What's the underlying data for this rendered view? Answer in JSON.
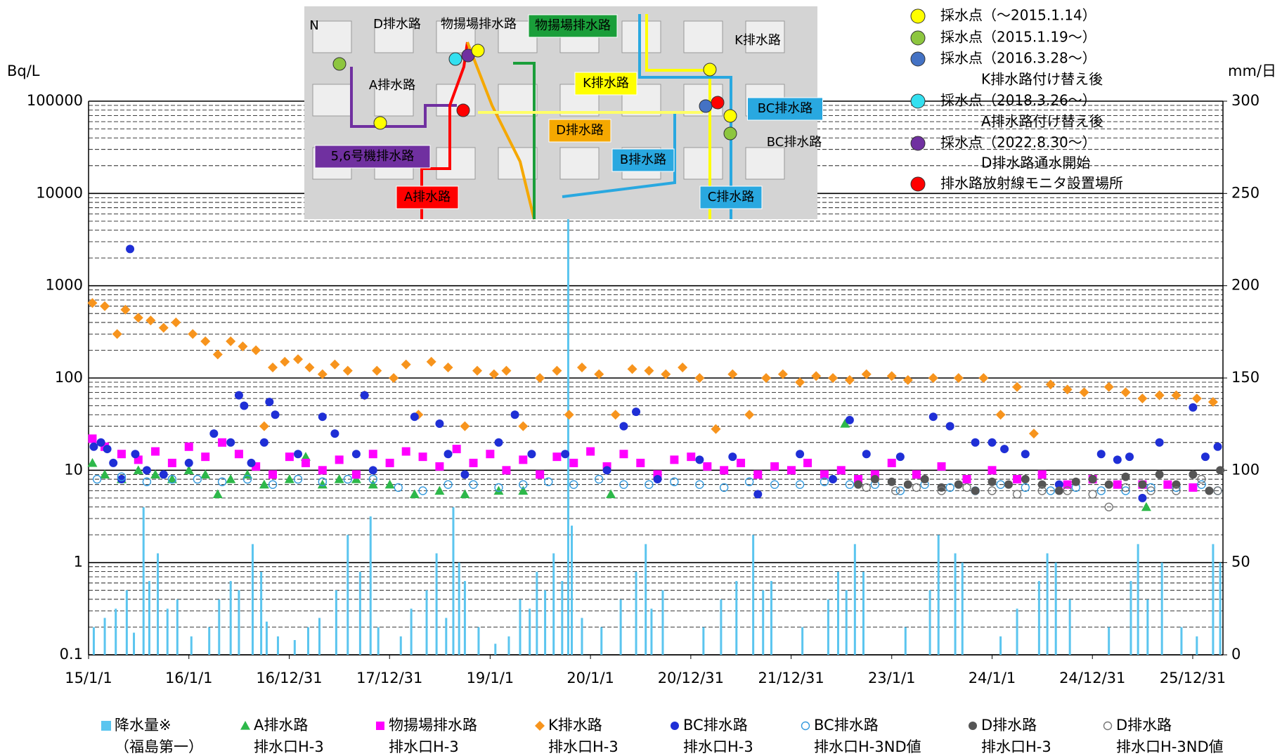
{
  "chart_data": {
    "type": "scatter",
    "y_label": "Bq/L",
    "y2_label": "mm/日",
    "xlim": [
      "15/1/1",
      "26/4/20"
    ],
    "xticks": [
      "15/1/1",
      "16/1/1",
      "16/12/31",
      "17/12/31",
      "19/1/1",
      "20/1/1",
      "20/12/31",
      "21/12/31",
      "23/1/1",
      "24/1/1",
      "24/12/31",
      "25/12/31"
    ],
    "ylim": [
      0.1,
      100000
    ],
    "yticks": [
      0.1,
      1,
      10,
      100,
      1000,
      10000,
      100000
    ],
    "y_scale": "log",
    "y2lim": [
      0,
      300
    ],
    "y2ticks": [
      0,
      50,
      100,
      150,
      200,
      250,
      300
    ],
    "grid": true,
    "series": [
      {
        "name": [
          "降水量※",
          "（福島第一）"
        ],
        "color": "#5bc5ef",
        "marker": "bar",
        "axis": "y2",
        "x": [
          "15/1/20",
          "15/3/1",
          "15/4/10",
          "15/5/20",
          "15/6/15",
          "15/7/20",
          "15/8/10",
          "15/9/10",
          "15/10/15",
          "15/11/20",
          "16/1/10",
          "16/3/15",
          "16/4/20",
          "16/6/1",
          "16/7/1",
          "16/8/20",
          "16/9/20",
          "16/10/10",
          "16/11/20",
          "17/1/20",
          "17/3/10",
          "17/4/20",
          "17/6/20",
          "17/8/1",
          "17/9/15",
          "17/10/23",
          "17/11/20",
          "18/2/10",
          "18/3/20",
          "18/5/15",
          "18/6/20",
          "18/7/25",
          "18/8/20",
          "18/9/10",
          "18/10/1",
          "18/11/20",
          "19/1/20",
          "19/3/10",
          "19/4/20",
          "19/5/25",
          "19/6/20",
          "19/7/20",
          "19/8/20",
          "19/9/20",
          "19/10/12",
          "19/10/25",
          "19/12/1",
          "20/2/10",
          "20/4/20",
          "20/6/15",
          "20/7/20",
          "20/8/10",
          "20/9/20",
          "21/2/15",
          "21/4/20",
          "21/6/15",
          "21/8/15",
          "21/9/20",
          "21/10/20",
          "22/2/10",
          "22/5/15",
          "22/6/20",
          "22/7/20",
          "22/8/20",
          "22/9/20",
          "23/2/20",
          "23/5/20",
          "23/6/20",
          "23/8/20",
          "23/9/15",
          "24/2/1",
          "24/4/1",
          "24/6/20",
          "24/7/20",
          "24/8/20",
          "24/10/10",
          "25/3/1",
          "25/5/20",
          "25/6/15",
          "25/7/20",
          "25/9/10",
          "25/11/20",
          "26/1/15",
          "26/3/15",
          "26/4/10"
        ],
        "values": [
          15,
          20,
          25,
          35,
          12,
          80,
          40,
          55,
          25,
          30,
          10,
          15,
          30,
          40,
          35,
          60,
          45,
          18,
          10,
          8,
          15,
          20,
          35,
          65,
          45,
          75,
          15,
          10,
          25,
          35,
          55,
          20,
          80,
          50,
          40,
          15,
          6,
          10,
          30,
          25,
          45,
          35,
          55,
          40,
          290,
          70,
          20,
          15,
          30,
          45,
          60,
          25,
          35,
          15,
          30,
          40,
          65,
          35,
          40,
          15,
          30,
          45,
          35,
          60,
          45,
          15,
          35,
          65,
          55,
          50,
          10,
          25,
          40,
          55,
          50,
          30,
          15,
          40,
          60,
          30,
          50,
          15,
          10,
          60,
          50
        ]
      },
      {
        "name": [
          "A排水路",
          "排水口H-3"
        ],
        "color": "#2db84a",
        "marker": "triangle",
        "x": [
          "15/1/15",
          "15/3/1",
          "15/5/1",
          "15/7/1",
          "15/9/1",
          "15/11/1",
          "16/1/1",
          "16/3/1",
          "16/4/15",
          "16/6/1",
          "16/8/1",
          "16/10/1",
          "17/1/1",
          "17/3/1",
          "17/5/1",
          "17/7/1",
          "17/9/1",
          "17/11/1",
          "18/1/1",
          "18/4/1",
          "18/7/1",
          "18/10/1",
          "19/2/1",
          "19/5/1",
          "20/3/15",
          "22/7/15",
          "25/7/15"
        ],
        "values": [
          12,
          9,
          8,
          10,
          9,
          8,
          10,
          9,
          5.5,
          8,
          9,
          7,
          8,
          14,
          7,
          8,
          8,
          7,
          7,
          5.5,
          6,
          5.5,
          6,
          6,
          5.5,
          32,
          4
        ]
      },
      {
        "name": [
          "物揚場排水路",
          "排水口H-3"
        ],
        "color": "#ff00ff",
        "marker": "square",
        "x": [
          "15/1/15",
          "15/3/1",
          "15/5/1",
          "15/7/1",
          "15/9/1",
          "15/11/1",
          "16/1/1",
          "16/3/1",
          "16/5/1",
          "16/7/1",
          "16/9/1",
          "16/11/1",
          "17/1/1",
          "17/3/1",
          "17/5/1",
          "17/7/1",
          "17/9/1",
          "17/11/1",
          "18/1/1",
          "18/3/1",
          "18/5/1",
          "18/7/1",
          "18/9/1",
          "18/11/1",
          "19/1/1",
          "19/3/1",
          "19/5/1",
          "19/7/1",
          "19/9/1",
          "19/11/1",
          "20/1/1",
          "20/3/1",
          "20/5/1",
          "20/7/1",
          "20/9/1",
          "20/11/1",
          "21/1/1",
          "21/3/1",
          "21/5/1",
          "21/7/1",
          "21/9/1",
          "21/11/1",
          "22/1/1",
          "22/3/1",
          "22/5/1",
          "22/7/1",
          "22/9/1",
          "22/11/1",
          "23/1/1",
          "23/4/1",
          "23/7/1",
          "23/10/1",
          "24/1/1",
          "24/4/1",
          "24/7/1",
          "24/10/1",
          "25/1/1",
          "25/4/1",
          "25/7/1",
          "25/10/1",
          "26/1/1"
        ],
        "values": [
          22,
          18,
          15,
          13,
          16,
          12,
          18,
          14,
          20,
          15,
          11,
          9,
          14,
          12,
          10,
          13,
          9,
          15,
          12,
          16,
          14,
          11,
          17,
          12,
          15,
          10,
          13,
          9,
          14,
          12,
          16,
          11,
          15,
          12,
          9,
          13,
          14,
          11,
          10,
          12,
          9,
          11,
          10,
          12,
          9,
          10,
          8,
          9,
          12,
          9,
          11,
          8,
          10,
          8,
          9,
          7,
          8,
          7,
          7,
          7,
          6.5
        ]
      },
      {
        "name": [
          "K排水路",
          "排水口H-3"
        ],
        "color": "#f7941d",
        "marker": "diamond",
        "x": [
          "15/1/15",
          "15/3/1",
          "15/4/15",
          "15/5/15",
          "15/7/1",
          "15/8/15",
          "15/10/1",
          "15/11/15",
          "16/1/15",
          "16/3/1",
          "16/4/15",
          "16/6/1",
          "16/7/15",
          "16/9/1",
          "16/10/1",
          "16/11/1",
          "16/12/15",
          "17/2/1",
          "17/3/15",
          "17/5/1",
          "17/6/15",
          "17/8/1",
          "17/10/1",
          "17/11/15",
          "18/1/15",
          "18/3/1",
          "18/4/15",
          "18/6/1",
          "18/8/1",
          "18/10/1",
          "18/11/15",
          "19/1/15",
          "19/3/1",
          "19/5/1",
          "19/7/1",
          "19/9/1",
          "19/10/15",
          "19/12/1",
          "20/2/1",
          "20/4/1",
          "20/6/1",
          "20/8/1",
          "20/10/1",
          "20/12/1",
          "21/2/1",
          "21/4/1",
          "21/6/1",
          "21/8/1",
          "21/10/1",
          "21/12/1",
          "22/2/1",
          "22/4/1",
          "22/6/1",
          "22/8/1",
          "22/10/1",
          "23/1/1",
          "23/3/1",
          "23/6/1",
          "23/9/1",
          "23/12/1",
          "24/2/1",
          "24/4/1",
          "24/6/1",
          "24/8/1",
          "24/10/1",
          "24/12/1",
          "25/3/1",
          "25/5/1",
          "25/7/1",
          "25/9/1",
          "25/11/1",
          "26/1/15",
          "26/3/15"
        ],
        "values": [
          650,
          600,
          300,
          550,
          450,
          420,
          350,
          400,
          300,
          250,
          180,
          250,
          220,
          200,
          30,
          130,
          150,
          160,
          130,
          110,
          140,
          120,
          65,
          120,
          100,
          140,
          40,
          150,
          130,
          30,
          120,
          110,
          120,
          30,
          100,
          120,
          40,
          130,
          110,
          40,
          125,
          120,
          110,
          130,
          100,
          28,
          110,
          40,
          100,
          110,
          90,
          105,
          100,
          95,
          110,
          105,
          95,
          100,
          100,
          100,
          40,
          80,
          25,
          85,
          75,
          70,
          80,
          70,
          60,
          65,
          65,
          60,
          55
        ]
      },
      {
        "name": [
          "BC排水路",
          "排水口H-3"
        ],
        "color": "#1f2fd6",
        "marker": "circle",
        "x": [
          "15/1/20",
          "15/2/15",
          "15/3/10",
          "15/4/1",
          "15/5/1",
          "15/6/1",
          "15/6/20",
          "15/8/1",
          "15/10/1",
          "16/1/1",
          "16/4/1",
          "16/6/1",
          "16/7/1",
          "16/7/20",
          "16/8/15",
          "16/10/1",
          "16/10/20",
          "16/11/10",
          "17/2/1",
          "17/5/1",
          "17/6/15",
          "17/9/1",
          "17/10/1",
          "17/11/1",
          "18/4/1",
          "18/7/1",
          "18/8/1",
          "18/10/1",
          "19/2/1",
          "19/4/1",
          "19/6/1",
          "19/10/1",
          "20/3/1",
          "20/5/1",
          "20/6/15",
          "20/9/1",
          "21/2/1",
          "21/6/1",
          "21/9/1",
          "22/2/1",
          "22/6/1",
          "22/8/1",
          "22/10/1",
          "23/2/1",
          "23/6/1",
          "23/8/1",
          "23/11/1",
          "24/1/1",
          "24/2/15",
          "24/5/1",
          "24/9/1",
          "25/2/1",
          "25/4/1",
          "25/5/15",
          "25/7/1",
          "25/9/1",
          "26/1/1",
          "26/2/15",
          "26/4/1"
        ],
        "values": [
          18,
          20,
          17,
          12,
          8,
          2500,
          15,
          10,
          9,
          12,
          25,
          20,
          65,
          50,
          12,
          20,
          55,
          40,
          15,
          38,
          25,
          15,
          65,
          10,
          38,
          32,
          15,
          9,
          20,
          40,
          15,
          15,
          10,
          30,
          43,
          8,
          13,
          14,
          5.5,
          15,
          8,
          35,
          15,
          14,
          38,
          30,
          20,
          20,
          17,
          15,
          7,
          15,
          13,
          14,
          5,
          20,
          48,
          14,
          18
        ]
      },
      {
        "name": [
          "BC排水路",
          "排水口H-3ND値"
        ],
        "color": "#3399dd",
        "marker": "circle-open",
        "x": [
          "15/2/1",
          "15/5/1",
          "15/8/1",
          "15/11/1",
          "16/2/1",
          "16/5/1",
          "16/8/1",
          "16/11/1",
          "17/2/1",
          "17/5/1",
          "17/8/1",
          "17/11/1",
          "18/2/1",
          "18/5/1",
          "18/8/1",
          "18/11/1",
          "19/2/1",
          "19/5/1",
          "19/8/1",
          "19/11/1",
          "20/2/1",
          "20/5/1",
          "20/8/1",
          "20/11/1",
          "21/2/1",
          "21/5/1",
          "21/8/1",
          "21/11/1",
          "22/2/1",
          "22/5/1",
          "22/8/1",
          "22/11/1",
          "23/2/1",
          "23/5/1",
          "23/8/1",
          "23/11/1",
          "24/2/1",
          "24/5/1",
          "24/8/1",
          "24/11/1",
          "25/2/1",
          "25/5/1",
          "25/8/1",
          "25/11/1",
          "26/2/1",
          "26/4/1"
        ],
        "values": [
          8,
          8.5,
          7.5,
          8,
          8,
          7.5,
          8,
          7,
          8,
          7.5,
          8,
          8,
          6.5,
          6,
          7,
          7,
          6.5,
          7,
          7.5,
          7,
          8,
          7,
          7,
          7.5,
          7,
          6.5,
          7.5,
          7,
          7,
          7.5,
          7,
          7,
          6,
          7,
          6.5,
          6,
          7,
          6.5,
          6,
          6.5,
          6,
          6,
          6.5,
          6.5,
          7,
          6
        ]
      },
      {
        "name": [
          "D排水路",
          "排水口H-3"
        ],
        "color": "#555555",
        "marker": "circle",
        "x": [
          "22/9/1",
          "22/11/1",
          "23/1/1",
          "23/3/1",
          "23/5/1",
          "23/7/1",
          "23/9/1",
          "23/11/1",
          "24/1/1",
          "24/3/1",
          "24/5/1",
          "24/7/1",
          "24/9/1",
          "24/11/1",
          "25/1/1",
          "25/3/1",
          "25/5/1",
          "25/7/1",
          "25/9/1",
          "25/11/1",
          "26/1/1",
          "26/3/1",
          "26/4/10"
        ],
        "values": [
          7,
          8,
          7.5,
          7,
          8,
          6.5,
          7,
          6,
          7.5,
          7,
          8,
          7,
          6,
          7.5,
          8,
          7,
          8.5,
          7,
          9,
          7,
          9,
          6,
          10
        ]
      },
      {
        "name": [
          "D排水路",
          "排水口H-3ND値"
        ],
        "color": "#777777",
        "marker": "circle-open",
        "x": [
          "22/10/1",
          "23/1/15",
          "23/4/1",
          "23/7/1",
          "23/10/1",
          "24/1/1",
          "24/4/1",
          "24/7/1",
          "24/10/1",
          "25/1/1",
          "25/3/1",
          "25/5/1",
          "25/8/1",
          "25/11/1",
          "26/2/1",
          "26/4/1"
        ],
        "values": [
          6.5,
          6,
          6.5,
          6,
          6.5,
          6,
          5.5,
          6,
          6,
          5.5,
          4,
          6.5,
          6,
          6,
          8,
          6
        ]
      }
    ],
    "inset": {
      "labels": [
        {
          "text": "N",
          "color": "#000000",
          "boxed": false
        },
        {
          "text": "D排水路",
          "color": "#ff0000",
          "boxed": false
        },
        {
          "text": "物揚場排水路",
          "color": "#ff0000",
          "boxed": false
        },
        {
          "text": "物揚場排水路",
          "color": "#1a9e3a",
          "boxed": true
        },
        {
          "text": "K排水路",
          "color": "#ff0000",
          "boxed": false
        },
        {
          "text": "A排水路",
          "color": "#ff0000",
          "boxed": false
        },
        {
          "text": "K排水路",
          "color": "#ffff00",
          "boxed": true
        },
        {
          "text": "BC排水路",
          "color": "#29a8e0",
          "boxed": true
        },
        {
          "text": "BC排水路",
          "color": "#ff0000",
          "boxed": false
        },
        {
          "text": "D排水路",
          "color": "#f5a800",
          "boxed": true
        },
        {
          "text": "B排水路",
          "color": "#29a8e0",
          "boxed": true
        },
        {
          "text": "5,6号機排水路",
          "color": "#7030a0",
          "boxed": true
        },
        {
          "text": "A排水路",
          "color": "#ff0000",
          "boxed": true
        },
        {
          "text": "C排水路",
          "color": "#29a8e0",
          "boxed": true
        }
      ],
      "legend": [
        {
          "text": [
            "採水点（～2015.1.14）"
          ],
          "color": "#ffff00"
        },
        {
          "text": [
            "採水点（2015.1.19～）"
          ],
          "color": "#8dc63f"
        },
        {
          "text": [
            "採水点（2016.3.28～）",
            "K排水路付け替え後"
          ],
          "color": "#4472c4"
        },
        {
          "text": [
            "採水点（2018.3.26～）",
            "A排水路付け替え後"
          ],
          "color": "#33e0f0"
        },
        {
          "text": [
            "採水点（2022.8.30～）",
            "D排水路通水開始"
          ],
          "color": "#7030a0"
        },
        {
          "text": [
            "排水路放射線モニタ設置場所"
          ],
          "color": "#ff0000"
        }
      ]
    }
  }
}
